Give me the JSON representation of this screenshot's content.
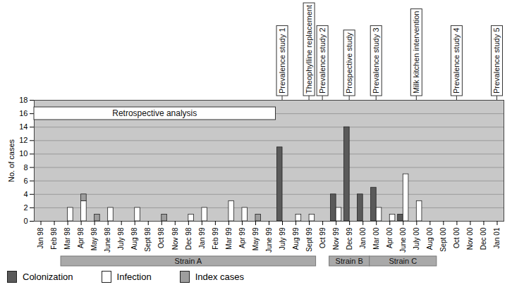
{
  "chart_data": {
    "type": "bar",
    "ylabel": "No. of cases",
    "categories": [
      "Jan 98",
      "Feb 98",
      "Mar 98",
      "Apr 98",
      "May 98",
      "June 98",
      "July 98",
      "Aug 98",
      "Sept 98",
      "Oct 98",
      "Nov 98",
      "Dec 98",
      "Jan 99",
      "Feb 99",
      "Mar 99",
      "Apr 99",
      "May 99",
      "June 99",
      "July 99",
      "Aug 99",
      "Sept 99",
      "Oct 99",
      "Nov 99",
      "Dec 99",
      "Jan 00",
      "Mar 00",
      "Apr 00",
      "June 00",
      "July 00",
      "Aug 00",
      "Sept 00",
      "Oct 00",
      "Nov 00",
      "Dec 00",
      "Jan 01"
    ],
    "series": [
      {
        "name": "Colonization",
        "color": "#5a5a5a",
        "values": [
          0,
          0,
          0,
          0,
          0,
          0,
          0,
          0,
          0,
          0,
          0,
          0,
          0,
          0,
          0,
          0,
          0,
          0,
          11,
          0,
          0,
          0,
          4,
          14,
          4,
          5,
          0,
          1,
          0,
          0,
          0,
          0,
          0,
          0,
          0
        ]
      },
      {
        "name": "Infection",
        "color": "#ffffff",
        "values": [
          0,
          0,
          2,
          3,
          0,
          2,
          0,
          2,
          0,
          0,
          0,
          1,
          2,
          0,
          3,
          2,
          0,
          0,
          0,
          1,
          1,
          0,
          2,
          0,
          0,
          2,
          1,
          7,
          3,
          0,
          0,
          0,
          0,
          0,
          0
        ]
      },
      {
        "name": "Index cases",
        "color": "#9e9e9e",
        "values": [
          0,
          0,
          0,
          1,
          1,
          0,
          0,
          0,
          0,
          1,
          0,
          0,
          0,
          0,
          0,
          0,
          1,
          0,
          0,
          0,
          0,
          0,
          0,
          0,
          0,
          0,
          0,
          0,
          0,
          0,
          0,
          0,
          0,
          0,
          0
        ]
      }
    ],
    "stacked": true,
    "ylim": [
      0,
      18
    ],
    "yticks": [
      0,
      2,
      4,
      6,
      8,
      10,
      12,
      14,
      16,
      18
    ],
    "grid": true,
    "legend": "bottom",
    "annotations": [
      {
        "text": "Prevalence study 1",
        "x": "July 99"
      },
      {
        "text": "Theophylline replacement",
        "x": "Sept 99"
      },
      {
        "text": "Prevalence study 2",
        "x": "Oct 99"
      },
      {
        "text": "Prospective study",
        "x": "Dec 99"
      },
      {
        "text": "Prevalence study 3",
        "x": "Mar 00"
      },
      {
        "text": "Milk kitchen intervention",
        "x": "July 00"
      },
      {
        "text": "Prevalence study 4",
        "x": "Oct 00"
      },
      {
        "text": "Prevalence study 5",
        "x": "Jan 01"
      }
    ],
    "spans": [
      {
        "text": "Retrospective analysis",
        "from": "Jan 98",
        "to": "June 99"
      }
    ],
    "strains": [
      {
        "text": "Strain A",
        "from": "Mar 98",
        "to": "Sept 99"
      },
      {
        "text": "Strain B",
        "from": "Nov 99",
        "to": "Jan 00"
      },
      {
        "text": "Strain C",
        "from": "Mar 00",
        "to": "Aug 00"
      }
    ]
  }
}
